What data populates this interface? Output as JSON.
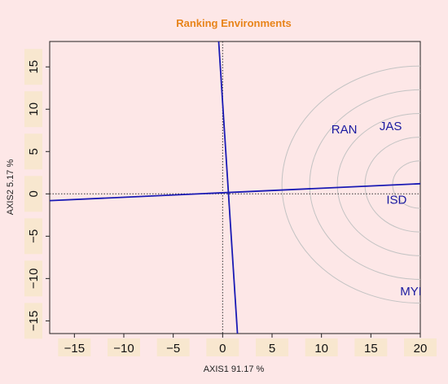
{
  "chart_data": {
    "type": "scatter",
    "title": "Ranking Environments",
    "xlabel": "AXIS1 91.17 %",
    "ylabel": "AXIS2 5.17 %",
    "xlim": [
      -17.5,
      20
    ],
    "ylim": [
      -16.5,
      18
    ],
    "x_ticks": [
      -15,
      -10,
      -5,
      0,
      5,
      10,
      15,
      20
    ],
    "y_ticks": [
      -15,
      -10,
      -5,
      0,
      5,
      10,
      15
    ],
    "x_tick_labels": [
      "−15",
      "−10",
      "−5",
      "0",
      "5",
      "10",
      "15",
      "20"
    ],
    "y_tick_labels": [
      "−15",
      "−10",
      "−5",
      "0",
      "5",
      "10",
      "15"
    ],
    "environments": [
      {
        "label": "RAN",
        "x": 12.3,
        "y": 7.6
      },
      {
        "label": "JAS",
        "x": 17.0,
        "y": 8.0
      },
      {
        "label": "ISD",
        "x": 17.6,
        "y": -0.7
      },
      {
        "label": "MYM",
        "x": 19.4,
        "y": -11.5
      }
    ],
    "average_environment_axis": {
      "from": [
        -17.5,
        -0.8
      ],
      "to": [
        20,
        1.2
      ]
    },
    "perpendicular_axis": {
      "from": [
        -0.4,
        18
      ],
      "to": [
        1.5,
        -16.5
      ]
    },
    "circles": {
      "center": [
        20,
        1.1
      ],
      "radii": [
        2.8,
        5.6,
        8.4,
        11.2,
        14
      ]
    },
    "colors": {
      "title": "#e8841a",
      "labels": "#1a1aa0",
      "axis_line": "#1a1ab4",
      "circles": "#c3c3c3",
      "plot_bg": "#fde7e7",
      "tick_bg": "#f8e7cf",
      "border": "#222222"
    }
  }
}
